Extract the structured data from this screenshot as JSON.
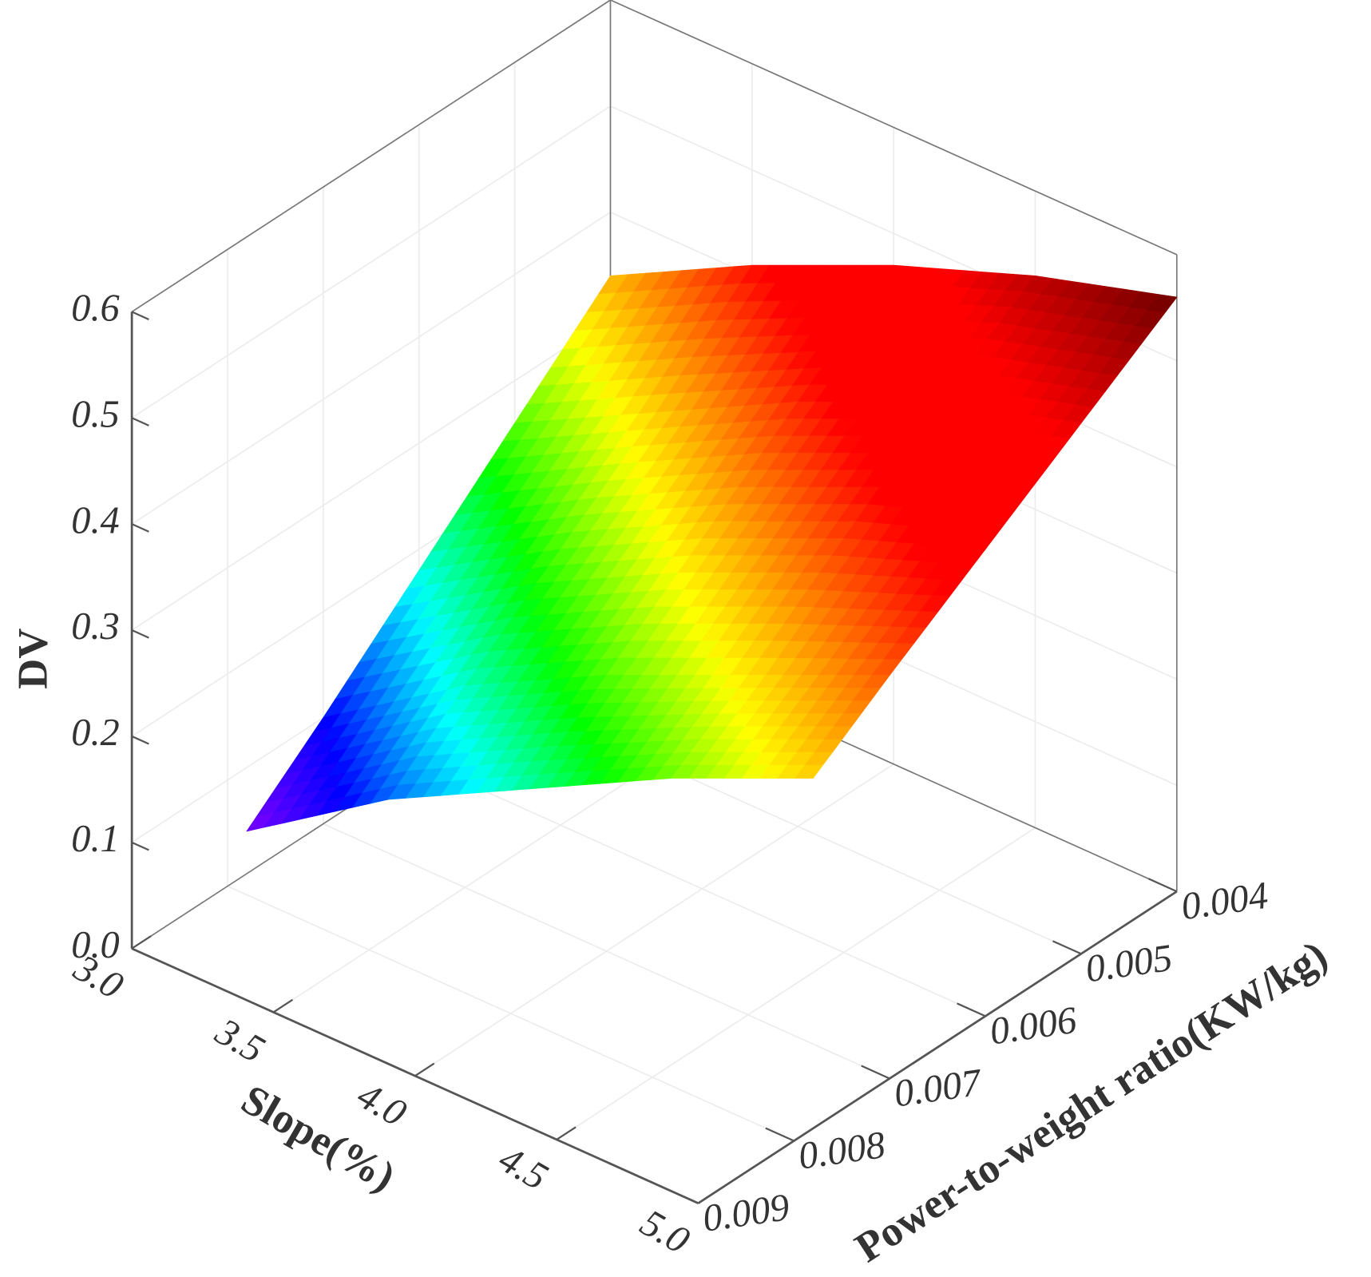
{
  "chart_data": {
    "type": "surface",
    "x_label": "Slope(%)",
    "y_label": "Power-to-weight ratio(KW/kg)",
    "z_label": "DV",
    "x": [
      3,
      3.5,
      4,
      4.5,
      5
    ],
    "y": [
      0.004,
      0.005,
      0.006,
      0.007,
      0.0078
    ],
    "z": [
      [
        0.34,
        0.41,
        0.47,
        0.52,
        0.56
      ],
      [
        0.26,
        0.33,
        0.4,
        0.46,
        0.5
      ],
      [
        0.18,
        0.26,
        0.33,
        0.39,
        0.44
      ],
      [
        0.1,
        0.19,
        0.26,
        0.32,
        0.38
      ],
      [
        0.04,
        0.13,
        0.2,
        0.27,
        0.33
      ]
    ],
    "xlim": [
      3,
      5
    ],
    "xticks": [
      {
        "value": 3,
        "label": "3.0"
      },
      3.5,
      {
        "value": 4,
        "label": "4.0"
      },
      4.5,
      {
        "value": 5,
        "label": "5.0"
      }
    ],
    "ylim": [
      0.004,
      0.009
    ],
    "yticks": [
      0.004,
      0.005,
      0.006,
      0.007,
      0.008,
      0.009
    ],
    "zlim": [
      0,
      0.6
    ],
    "zticks": [
      {
        "value": 0,
        "label": "0.0"
      },
      0.1,
      0.2,
      0.3,
      0.4,
      0.5,
      0.6
    ],
    "colormap": "rainbow",
    "grid": true
  }
}
